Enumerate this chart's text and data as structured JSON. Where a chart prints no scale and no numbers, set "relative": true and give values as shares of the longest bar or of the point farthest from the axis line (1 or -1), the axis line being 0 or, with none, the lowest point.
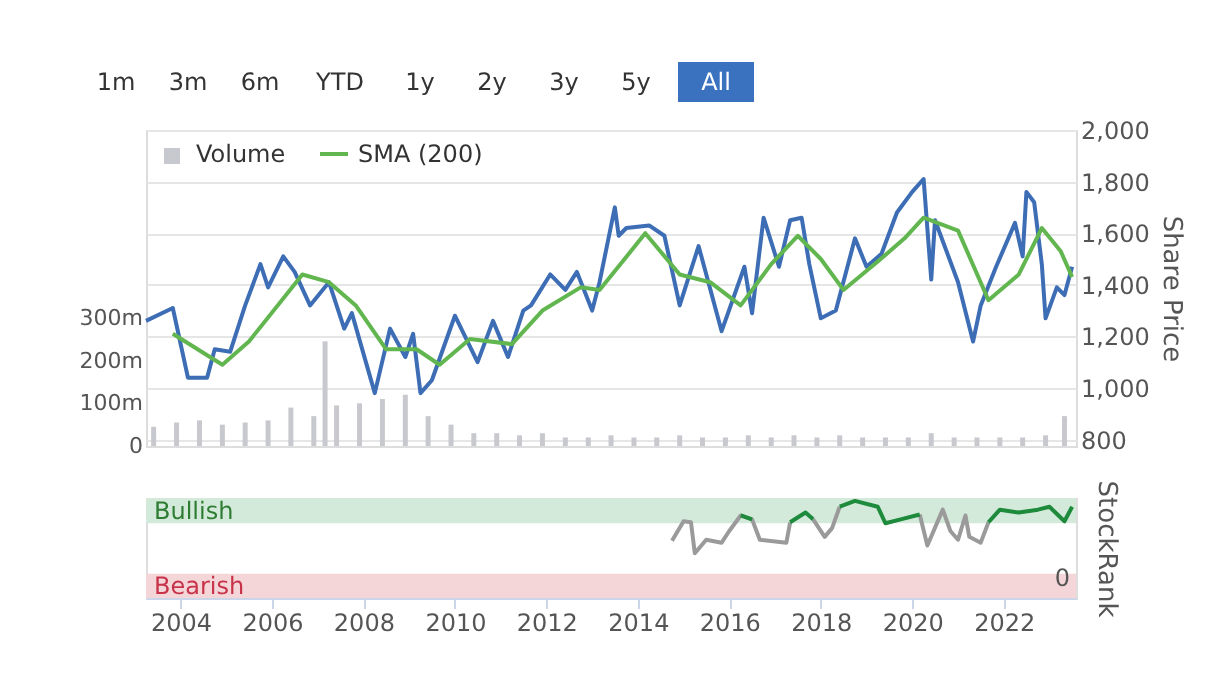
{
  "chart_data": [
    {
      "type": "line",
      "ylabel": "Share Price",
      "legend": "top left",
      "grid": "y",
      "tick_labels": "y",
      "annotations": [
        "1m",
        "3m",
        "6m",
        "YTD",
        "1y",
        "2y",
        "3y",
        "5y",
        "All"
      ],
      "xlim": [
        "2003-04",
        "2023-08"
      ],
      "ylim": [
        775,
        2000
      ],
      "yticks": [
        800,
        {
          "value": 1000,
          "label": "1,000"
        },
        {
          "value": 1200,
          "label": "1,200"
        },
        {
          "value": 1400,
          "label": "1,400"
        },
        {
          "value": 1600,
          "label": "1,600"
        },
        {
          "value": 1800,
          "label": "1,800"
        },
        {
          "value": 2000,
          "label": "2,000"
        }
      ],
      "y2lim": [
        0,
        740
      ],
      "y2ticks": [
        0,
        {
          "value": 100,
          "label": "100m"
        },
        {
          "value": 200,
          "label": "200m"
        },
        {
          "value": 300,
          "label": "300m"
        }
      ],
      "series": [
        {
          "type": "bar",
          "axis": "y2",
          "name": "Volume",
          "color": "#c8c9ce",
          "x": [
            "2003-06",
            "2003-12",
            "2004-06",
            "2004-12",
            "2005-06",
            "2005-12",
            "2006-06",
            "2006-12",
            "2007-03",
            "2007-06",
            "2007-12",
            "2008-06",
            "2008-12",
            "2009-06",
            "2009-12",
            "2010-06",
            "2010-12",
            "2011-06",
            "2011-12",
            "2012-06",
            "2012-12",
            "2013-06",
            "2013-12",
            "2014-06",
            "2014-12",
            "2015-06",
            "2015-12",
            "2016-06",
            "2016-12",
            "2017-06",
            "2017-12",
            "2018-06",
            "2018-12",
            "2019-06",
            "2019-12",
            "2020-06",
            "2020-12",
            "2021-06",
            "2021-12",
            "2022-06",
            "2022-12",
            "2023-05"
          ],
          "values": [
            45,
            55,
            60,
            50,
            55,
            60,
            90,
            70,
            245,
            95,
            100,
            110,
            120,
            70,
            50,
            30,
            30,
            25,
            30,
            20,
            20,
            25,
            20,
            20,
            25,
            20,
            20,
            25,
            20,
            25,
            20,
            25,
            20,
            20,
            20,
            30,
            20,
            20,
            20,
            20,
            25,
            70
          ]
        },
        {
          "type": "line",
          "color": "#3d6db5",
          "x": [
            "2003-04",
            "2003-11",
            "2004-03",
            "2004-08",
            "2004-10",
            "2005-02",
            "2005-06",
            "2005-10",
            "2005-12",
            "2006-04",
            "2006-07",
            "2006-11",
            "2007-04",
            "2007-08",
            "2007-10",
            "2008-04",
            "2008-08",
            "2008-12",
            "2009-02",
            "2009-04",
            "2009-07",
            "2010-01",
            "2010-07",
            "2010-11",
            "2011-03",
            "2011-07",
            "2011-09",
            "2012-02",
            "2012-06",
            "2012-09",
            "2013-01",
            "2013-03",
            "2013-07",
            "2013-08",
            "2013-10",
            "2014-04",
            "2014-08",
            "2014-12",
            "2015-05",
            "2015-11",
            "2016-05",
            "2016-07",
            "2016-10",
            "2017-02",
            "2017-05",
            "2017-08",
            "2017-10",
            "2018-01",
            "2018-05",
            "2018-10",
            "2019-01",
            "2019-05",
            "2019-09",
            "2020-01",
            "2020-04",
            "2020-06",
            "2020-07",
            "2021-01",
            "2021-05",
            "2021-07",
            "2021-11",
            "2022-04",
            "2022-06",
            "2022-07",
            "2022-09",
            "2022-11",
            "2022-12",
            "2023-03",
            "2023-05",
            "2023-07"
          ],
          "values": [
            1260,
            1310,
            1040,
            1040,
            1150,
            1140,
            1320,
            1480,
            1390,
            1510,
            1450,
            1320,
            1410,
            1230,
            1290,
            980,
            1230,
            1120,
            1210,
            980,
            1030,
            1280,
            1100,
            1260,
            1120,
            1300,
            1320,
            1440,
            1380,
            1450,
            1300,
            1410,
            1700,
            1590,
            1620,
            1630,
            1590,
            1320,
            1550,
            1220,
            1470,
            1290,
            1660,
            1470,
            1650,
            1660,
            1480,
            1270,
            1300,
            1580,
            1470,
            1520,
            1680,
            1760,
            1810,
            1420,
            1650,
            1410,
            1180,
            1320,
            1470,
            1640,
            1510,
            1760,
            1720,
            1480,
            1270,
            1390,
            1360,
            1470
          ]
        },
        {
          "type": "line",
          "name": "SMA (200)",
          "color": "#62b64f",
          "x": [
            "2003-11",
            "2004-12",
            "2005-07",
            "2006-09",
            "2007-04",
            "2007-11",
            "2008-07",
            "2009-03",
            "2009-09",
            "2010-05",
            "2011-04",
            "2011-12",
            "2012-10",
            "2013-03",
            "2013-09",
            "2014-03",
            "2014-12",
            "2015-08",
            "2016-04",
            "2016-12",
            "2017-07",
            "2018-01",
            "2018-07",
            "2019-04",
            "2019-11",
            "2020-04",
            "2021-01",
            "2021-09",
            "2022-05",
            "2022-11",
            "2023-04",
            "2023-07"
          ],
          "values": [
            1210,
            1090,
            1180,
            1440,
            1410,
            1320,
            1150,
            1150,
            1090,
            1190,
            1170,
            1300,
            1390,
            1380,
            1490,
            1600,
            1440,
            1410,
            1320,
            1480,
            1590,
            1500,
            1380,
            1490,
            1580,
            1660,
            1610,
            1340,
            1440,
            1620,
            1530,
            1430
          ]
        }
      ]
    },
    {
      "type": "line",
      "ylabel": "StockRank",
      "grid": false,
      "relative": true,
      "annotations": [
        "0"
      ],
      "xlim": [
        "2003-04",
        "2023-08"
      ],
      "xticks": [
        "2004",
        "2006",
        "2008",
        "2010",
        "2012",
        "2014",
        "2016",
        "2018",
        "2020",
        "2022"
      ],
      "bands": [
        {
          "axis": "y",
          "from": 0.77,
          "to": 1.03,
          "label": "Bullish",
          "color": "#d3eadb"
        },
        {
          "axis": "y",
          "from": 0,
          "to": 0.25,
          "label": "Bearish",
          "color": "#f4d6d9"
        }
      ],
      "series": [
        {
          "color": "#9a9a9a",
          "x": [
            "2014-10",
            "2015-01",
            "2015-03",
            "2015-04",
            "2015-07",
            "2015-11",
            "2016-01",
            "2016-04",
            "2016-07",
            "2016-09",
            "2017-04",
            "2017-05",
            "2017-09",
            "2017-11",
            "2018-02",
            "2018-04",
            "2018-06",
            "2018-10",
            "2019-04",
            "2019-06",
            "2019-10",
            "2020-03",
            "2020-05",
            "2020-09",
            "2020-11",
            "2021-01",
            "2021-03",
            "2021-04",
            "2021-07",
            "2021-09"
          ],
          "values": [
            0.59,
            0.79,
            0.78,
            0.46,
            0.6,
            0.57,
            0.69,
            0.85,
            0.81,
            0.6,
            0.57,
            0.78,
            null,
            0.81,
            0.63,
            0.72,
            0.94,
            null,
            null,
            null,
            null,
            0.86,
            0.54,
            0.91,
            0.69,
            0.6,
            0.85,
            0.63,
            0.57,
            0.78
          ]
        },
        {
          "color": "#1e8a3c",
          "x": [
            "2016-04",
            "2016-07",
            "2016-09",
            "2017-04",
            "2017-05",
            "2017-09",
            "2017-11",
            "2018-02",
            "2018-04",
            "2018-06",
            "2018-10",
            "2019-04",
            "2019-06",
            "2019-10",
            "2020-03",
            "2020-05",
            "2020-09",
            "2020-11",
            "2021-01",
            "2021-03",
            "2021-04",
            "2021-07",
            "2021-09",
            "2021-12",
            "2022-05",
            "2022-10",
            "2023-01",
            "2023-05",
            "2023-07"
          ],
          "values": [
            0.85,
            0.81,
            null,
            null,
            0.78,
            0.88,
            0.81,
            null,
            null,
            0.94,
            1,
            0.94,
            0.77,
            0.81,
            0.86,
            null,
            null,
            null,
            null,
            null,
            null,
            null,
            0.78,
            0.91,
            0.88,
            0.91,
            0.94,
            0.79,
            0.94
          ]
        }
      ]
    }
  ]
}
